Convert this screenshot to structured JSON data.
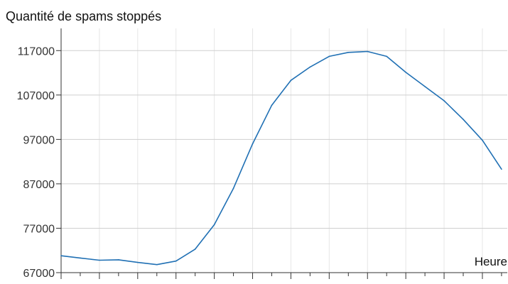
{
  "chart_data": {
    "type": "line",
    "ylabel": "Quantité de spams stoppés",
    "xlabel": "Heure",
    "ylim": [
      67000,
      122000
    ],
    "yticks": [
      67000,
      77000,
      87000,
      97000,
      107000,
      117000
    ],
    "ytick_labels": [
      "67000",
      "77000",
      "87000",
      "97000",
      "107000",
      "117000"
    ],
    "x": [
      0,
      1,
      2,
      3,
      4,
      5,
      6,
      7,
      8,
      9,
      10,
      11,
      12,
      13,
      14,
      15,
      16,
      17,
      18,
      19,
      20,
      21,
      22,
      23
    ],
    "xlim": [
      0,
      23.3
    ],
    "grid": true,
    "series": [
      {
        "color": "#2070b4",
        "values": [
          70800,
          70300,
          69800,
          69900,
          69300,
          68800,
          69600,
          72300,
          77800,
          86000,
          96000,
          104700,
          110300,
          113300,
          115700,
          116600,
          116800,
          115700,
          112100,
          108900,
          105700,
          101500,
          96800,
          90300
        ]
      }
    ]
  }
}
